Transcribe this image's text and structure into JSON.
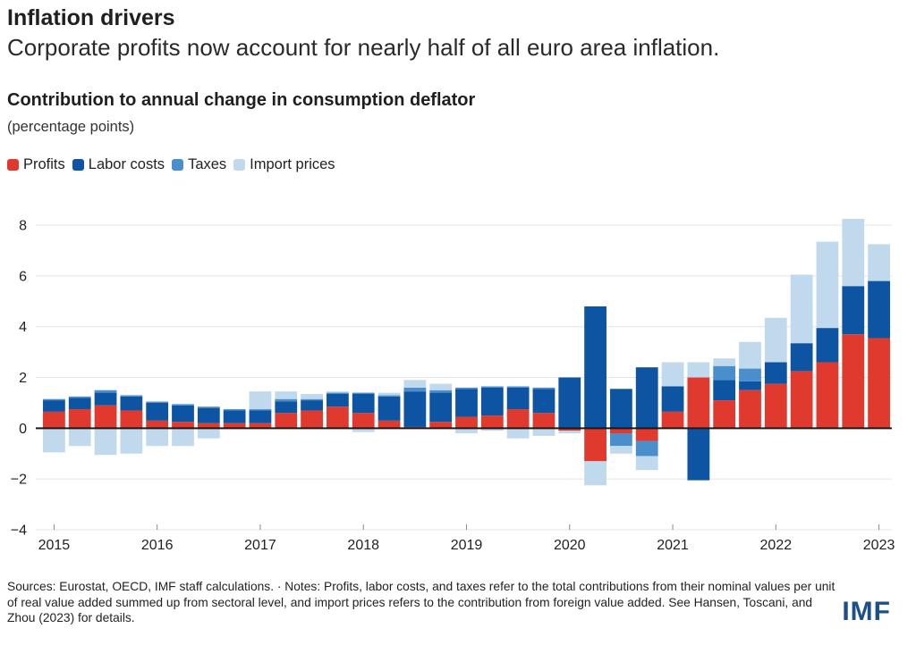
{
  "header": {
    "kicker": "Inflation drivers",
    "headline": "Corporate profits now account for nearly half of all euro area inflation."
  },
  "chart_data": {
    "type": "bar",
    "stacked": true,
    "title": "Contribution to annual change in consumption deflator",
    "ylabel": "(percentage points)",
    "ylim": [
      -4,
      8.6
    ],
    "yticks": [
      8,
      6,
      4,
      2,
      0,
      -2,
      -4
    ],
    "ytick_labels": [
      "8",
      "6",
      "4",
      "2",
      "0",
      "−2",
      "−4"
    ],
    "grid": true,
    "legend_placement": "top-left",
    "x_tick_labels": [
      "2015",
      "2016",
      "2017",
      "2018",
      "2019",
      "2020",
      "2021",
      "2022",
      "2023"
    ],
    "categories": [
      "2015Q1",
      "2015Q2",
      "2015Q3",
      "2015Q4",
      "2016Q1",
      "2016Q2",
      "2016Q3",
      "2016Q4",
      "2017Q1",
      "2017Q2",
      "2017Q3",
      "2017Q4",
      "2018Q1",
      "2018Q2",
      "2018Q3",
      "2018Q4",
      "2019Q1",
      "2019Q2",
      "2019Q3",
      "2019Q4",
      "2020Q1",
      "2020Q2",
      "2020Q3",
      "2020Q4",
      "2021Q1",
      "2021Q2",
      "2021Q3",
      "2021Q4",
      "2022Q1",
      "2022Q2",
      "2022Q3",
      "2022Q4",
      "2023Q1"
    ],
    "series": [
      {
        "name": "Profits",
        "color": "#e03a2f",
        "values": [
          0.65,
          0.75,
          0.9,
          0.7,
          0.3,
          0.25,
          0.2,
          0.2,
          0.2,
          0.6,
          0.7,
          0.85,
          0.6,
          0.3,
          0.05,
          0.25,
          0.45,
          0.5,
          0.75,
          0.6,
          -0.1,
          -1.3,
          -0.2,
          -0.5,
          0.65,
          2.0,
          1.1,
          1.5,
          1.75,
          2.25,
          2.6,
          3.7,
          3.55
        ]
      },
      {
        "name": "Labor costs",
        "color": "#0d55a2",
        "values": [
          0.45,
          0.45,
          0.5,
          0.55,
          0.7,
          0.65,
          0.6,
          0.5,
          0.5,
          0.45,
          0.4,
          0.5,
          0.75,
          0.95,
          1.4,
          1.15,
          1.1,
          1.1,
          0.85,
          0.95,
          2.0,
          4.8,
          1.55,
          2.4,
          1.0,
          -2.05,
          0.8,
          0.35,
          0.85,
          1.1,
          1.35,
          1.9,
          2.25
        ]
      },
      {
        "name": "Taxes",
        "color": "#4a8fcb",
        "values": [
          0.05,
          0.05,
          0.1,
          0.05,
          0.05,
          0.05,
          0.05,
          0.05,
          0.05,
          0.1,
          0.05,
          0.05,
          0.05,
          0.05,
          0.15,
          0.1,
          0.05,
          0.05,
          0.05,
          0.05,
          0.0,
          0.0,
          -0.5,
          -0.6,
          0.0,
          0.0,
          0.55,
          0.5,
          0.0,
          0.0,
          0.0,
          0.0,
          0.0
        ]
      },
      {
        "name": "Import prices",
        "color": "#c1d9ec",
        "values": [
          -0.95,
          -0.7,
          -1.05,
          -1.0,
          -0.7,
          -0.7,
          -0.4,
          0.0,
          0.7,
          0.3,
          0.2,
          0.05,
          -0.15,
          0.1,
          0.3,
          0.25,
          -0.2,
          -0.1,
          -0.4,
          -0.3,
          -0.1,
          -0.95,
          -0.3,
          -0.55,
          0.95,
          0.6,
          0.3,
          1.05,
          1.75,
          2.7,
          3.4,
          2.65,
          1.45
        ]
      }
    ]
  },
  "sources_text": "Sources: Eurostat, OECD, IMF staff calculations. · Notes: Profits, labor costs, and taxes refer to the total contributions from their nominal values per unit of real value added summed up from sectoral level, and import prices refers to the contribution from foreign value added. See Hansen, Toscani, and Zhou (2023) for details.",
  "logo_text": "IMF"
}
